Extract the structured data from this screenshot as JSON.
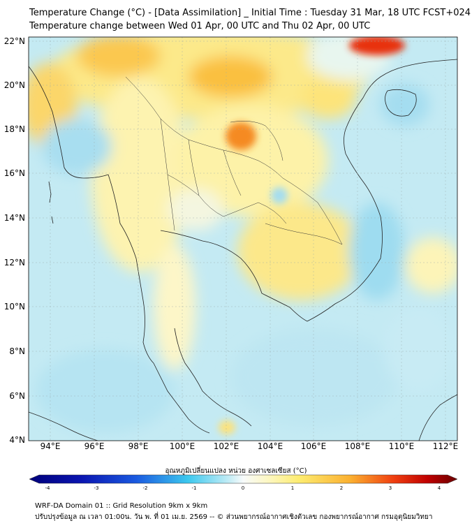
{
  "header": {
    "title_line1": "Temperature Change (°C) - [Data Assimilation] _ Initial Time : Tuesday 31 Mar, 18 UTC FCST+024",
    "title_line2": "Temperature change between Wed 01 Apr, 00 UTC and Thu 02 Apr, 00 UTC"
  },
  "map": {
    "lat_labels": [
      "22°N",
      "20°N",
      "18°N",
      "16°N",
      "14°N",
      "12°N",
      "10°N",
      "8°N",
      "6°N",
      "4°N"
    ],
    "lon_labels": [
      "94°E",
      "96°E",
      "98°E",
      "100°E",
      "102°E",
      "104°E",
      "106°E",
      "108°E",
      "110°E",
      "112°E"
    ]
  },
  "colorbar": {
    "label": "อุณหภูมิเปลี่ยนแปลง หน่วย องศาเซลเซียส (°C)",
    "ticks": [
      "-4",
      "-3",
      "-2",
      "-1",
      "0",
      "1",
      "2",
      "3",
      "4"
    ],
    "colors": {
      "dark_blue": "#00007a",
      "blue": "#1a2fd8",
      "cyan": "#3cc8ee",
      "light": "#eaf7fa",
      "yellow": "#fdf3a0",
      "orange": "#fb9a20",
      "red": "#e01010",
      "dark_red": "#6a0000"
    }
  },
  "footer": {
    "line1": "WRF-DA Domain 01 :: Grid Resolution 9km x 9km",
    "line2": "ปรับปรุงข้อมูล ณ เวลา 01:00น. วัน พ. ที่ 01 เม.ย. 2569 -- © ส่วนพยากรณ์อากาศเชิงตัวเลข กองพยากรณ์อากาศ กรมอุตุนิยมวิทยา"
  }
}
